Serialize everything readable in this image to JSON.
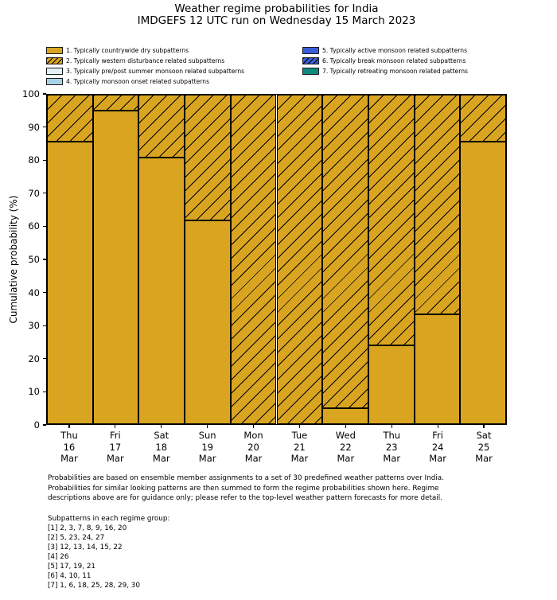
{
  "title": "Weather regime probabilities for India",
  "subtitle": "IMDGEFS 12 UTC run on Wednesday 15 March 2023",
  "legend": {
    "items": [
      {
        "label": "1. Typically countrywide dry subpatterns",
        "color": "#d9a521",
        "hatch": false
      },
      {
        "label": "2. Typically western disturbance related subpatterns",
        "color": "#d9a521",
        "hatch": true
      },
      {
        "label": "3. Typically pre/post summer monsoon related subpatterns",
        "color": "#e2f2f8",
        "hatch": false
      },
      {
        "label": "4. Typically monsoon onset related subpatterns",
        "color": "#a8d3e4",
        "hatch": false
      },
      {
        "label": "5. Typically active monsoon related subpatterns",
        "color": "#3a5dd9",
        "hatch": false
      },
      {
        "label": "6. Typically break monsoon related subpatterns",
        "color": "#3a5dd9",
        "hatch": true
      },
      {
        "label": "7. Typically retreating monsoon related patterns",
        "color": "#0e8a7d",
        "hatch": false
      }
    ]
  },
  "chart_data": {
    "type": "bar",
    "stacked": true,
    "title": "Weather regime probabilities for India",
    "subtitle": "IMDGEFS 12 UTC run on Wednesday 15 March 2023",
    "xlabel": "",
    "ylabel": "Cumulative probability (%)",
    "ylim": [
      0,
      100
    ],
    "yticks": [
      0,
      10,
      20,
      30,
      40,
      50,
      60,
      70,
      80,
      90,
      100
    ],
    "grid": false,
    "legend_position": "above-plot, two columns",
    "categories": [
      [
        "Thu",
        "16",
        "Mar"
      ],
      [
        "Fri",
        "17",
        "Mar"
      ],
      [
        "Sat",
        "18",
        "Mar"
      ],
      [
        "Sun",
        "19",
        "Mar"
      ],
      [
        "Mon",
        "20",
        "Mar"
      ],
      [
        "Tue",
        "21",
        "Mar"
      ],
      [
        "Wed",
        "22",
        "Mar"
      ],
      [
        "Thu",
        "23",
        "Mar"
      ],
      [
        "Fri",
        "24",
        "Mar"
      ],
      [
        "Sat",
        "25",
        "Mar"
      ]
    ],
    "series": [
      {
        "name": "1. Typically countrywide dry subpatterns",
        "values": [
          85.7,
          95.2,
          81.0,
          61.9,
          0,
          0,
          4.8,
          23.8,
          33.3,
          85.7
        ],
        "color": "#d9a521",
        "hatch": false
      },
      {
        "name": "2. Typically western disturbance related subpatterns",
        "values": [
          14.3,
          4.8,
          19.0,
          38.1,
          100,
          100,
          95.2,
          76.2,
          66.7,
          14.3
        ],
        "color": "#d9a521",
        "hatch": true
      }
    ],
    "edge_color": "#000000"
  },
  "footnote": {
    "lines": [
      "Probabilities are based on ensemble member assignments to a set of 30 predefined weather patterns over India.",
      "Probabilities for similar looking patterns are then summed to form the regime probabilities shown here. Regime",
      "descriptions above are for guidance only; please refer to the top-level weather pattern forecasts for more detail."
    ]
  },
  "subpatterns": {
    "heading": "Subpatterns in each regime group:",
    "lines": [
      "[1] 2, 3, 7, 8, 9, 16, 20",
      "[2] 5, 23, 24, 27",
      "[3] 12, 13, 14, 15, 22",
      "[4] 26",
      "[5] 17, 19, 21",
      "[6] 4, 10, 11",
      "[7] 1, 6, 18, 25, 28, 29, 30"
    ]
  }
}
